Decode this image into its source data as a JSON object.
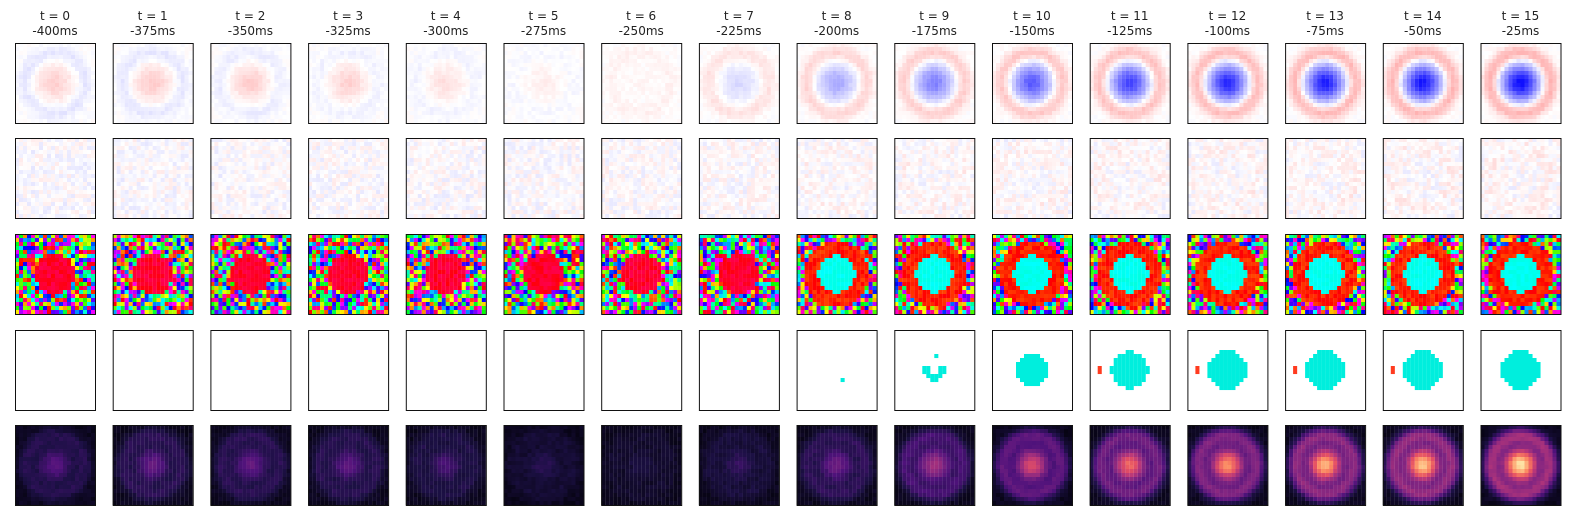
{
  "chart_data": {
    "type": "heatmap",
    "description": "Grid of 16 time columns x 5 row panels; each panel is a 20x20 pixel map of a receptive field at a time lag.",
    "grid": {
      "rows": 5,
      "cols": 16,
      "pixels_per_side": 20
    },
    "columns": [
      {
        "t": "t = 0",
        "lag": "-400ms"
      },
      {
        "t": "t = 1",
        "lag": "-375ms"
      },
      {
        "t": "t = 2",
        "lag": "-350ms"
      },
      {
        "t": "t = 3",
        "lag": "-325ms"
      },
      {
        "t": "t = 4",
        "lag": "-300ms"
      },
      {
        "t": "t = 5",
        "lag": "-275ms"
      },
      {
        "t": "t = 6",
        "lag": "-250ms"
      },
      {
        "t": "t = 7",
        "lag": "-225ms"
      },
      {
        "t": "t = 8",
        "lag": "-200ms"
      },
      {
        "t": "t = 9",
        "lag": "-175ms"
      },
      {
        "t": "t = 10",
        "lag": "-150ms"
      },
      {
        "t": "t = 11",
        "lag": "-125ms"
      },
      {
        "t": "t = 12",
        "lag": "-100ms"
      },
      {
        "t": "t = 13",
        "lag": "-75ms"
      },
      {
        "t": "t = 14",
        "lag": "-50ms"
      },
      {
        "t": "t = 15",
        "lag": "-25ms"
      }
    ],
    "row_panels": [
      {
        "key": "signed_map",
        "colormap": "bwr",
        "neg_color": "#0000ff",
        "pos_color": "#ff0000"
      },
      {
        "key": "residual_map",
        "colormap": "bwr_faint",
        "neg_color": "#0000ff",
        "pos_color": "#ff0000"
      },
      {
        "key": "phase_map",
        "colormap": "hsv"
      },
      {
        "key": "thresholded_map",
        "colormap": "binary_mask",
        "mask_color": "#00eedd",
        "accent_color": "#ff3b1f"
      },
      {
        "key": "magnitude_map",
        "colormap": "magma"
      }
    ],
    "center_strength": [
      0.18,
      0.2,
      0.2,
      0.18,
      0.12,
      0.06,
      0.03,
      -0.15,
      -0.35,
      -0.5,
      -0.65,
      -0.75,
      -0.85,
      -0.9,
      -0.92,
      -0.95
    ],
    "ring_strength": [
      -0.1,
      -0.1,
      -0.08,
      -0.06,
      -0.05,
      -0.03,
      0.05,
      0.12,
      0.18,
      0.22,
      0.25,
      0.28,
      0.3,
      0.32,
      0.33,
      0.34
    ],
    "mask_radius": [
      0,
      0,
      0,
      0,
      0,
      0,
      0,
      0,
      0.5,
      2.5,
      4.0,
      4.6,
      4.8,
      4.9,
      4.9,
      4.9
    ],
    "magnitude": [
      0.25,
      0.28,
      0.28,
      0.26,
      0.2,
      0.12,
      0.08,
      0.15,
      0.3,
      0.45,
      0.6,
      0.7,
      0.8,
      0.88,
      0.93,
      1.0
    ]
  }
}
